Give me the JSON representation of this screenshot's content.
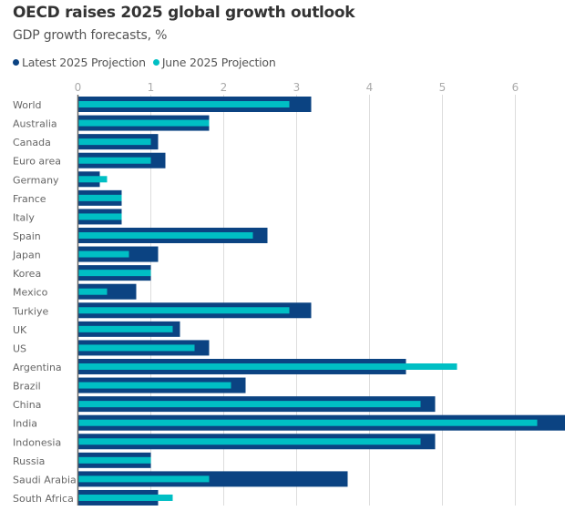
{
  "chart_data": {
    "type": "bar",
    "orientation": "horizontal",
    "title": "OECD raises 2025 global growth outlook",
    "subtitle": "GDP growth forecasts, %",
    "xlabel": "",
    "ylabel": "",
    "xlim": [
      0,
      6.7
    ],
    "xticks": [
      0,
      1,
      2,
      3,
      4,
      5,
      6
    ],
    "grid": "vertical",
    "legend_position": "top-left",
    "categories": [
      "World",
      "Australia",
      "Canada",
      "Euro area",
      "Germany",
      "France",
      "Italy",
      "Spain",
      "Japan",
      "Korea",
      "Mexico",
      "Turkiye",
      "UK",
      "US",
      "Argentina",
      "Brazil",
      "China",
      "India",
      "Indonesia",
      "Russia",
      "Saudi Arabia",
      "South Africa"
    ],
    "series": [
      {
        "name": "Latest 2025 Projection",
        "color": "#0b4382",
        "values": [
          3.2,
          1.8,
          1.1,
          1.2,
          0.3,
          0.6,
          0.6,
          2.6,
          1.1,
          1.0,
          0.8,
          3.2,
          1.4,
          1.8,
          4.5,
          2.3,
          4.9,
          6.7,
          4.9,
          1.0,
          3.7,
          1.1
        ]
      },
      {
        "name": "June 2025 Projection",
        "color": "#00bfc4",
        "values": [
          2.9,
          1.8,
          1.0,
          1.0,
          0.4,
          0.6,
          0.6,
          2.4,
          0.7,
          1.0,
          0.4,
          2.9,
          1.3,
          1.6,
          5.2,
          2.1,
          4.7,
          6.3,
          4.7,
          1.0,
          1.8,
          1.3
        ]
      }
    ]
  }
}
